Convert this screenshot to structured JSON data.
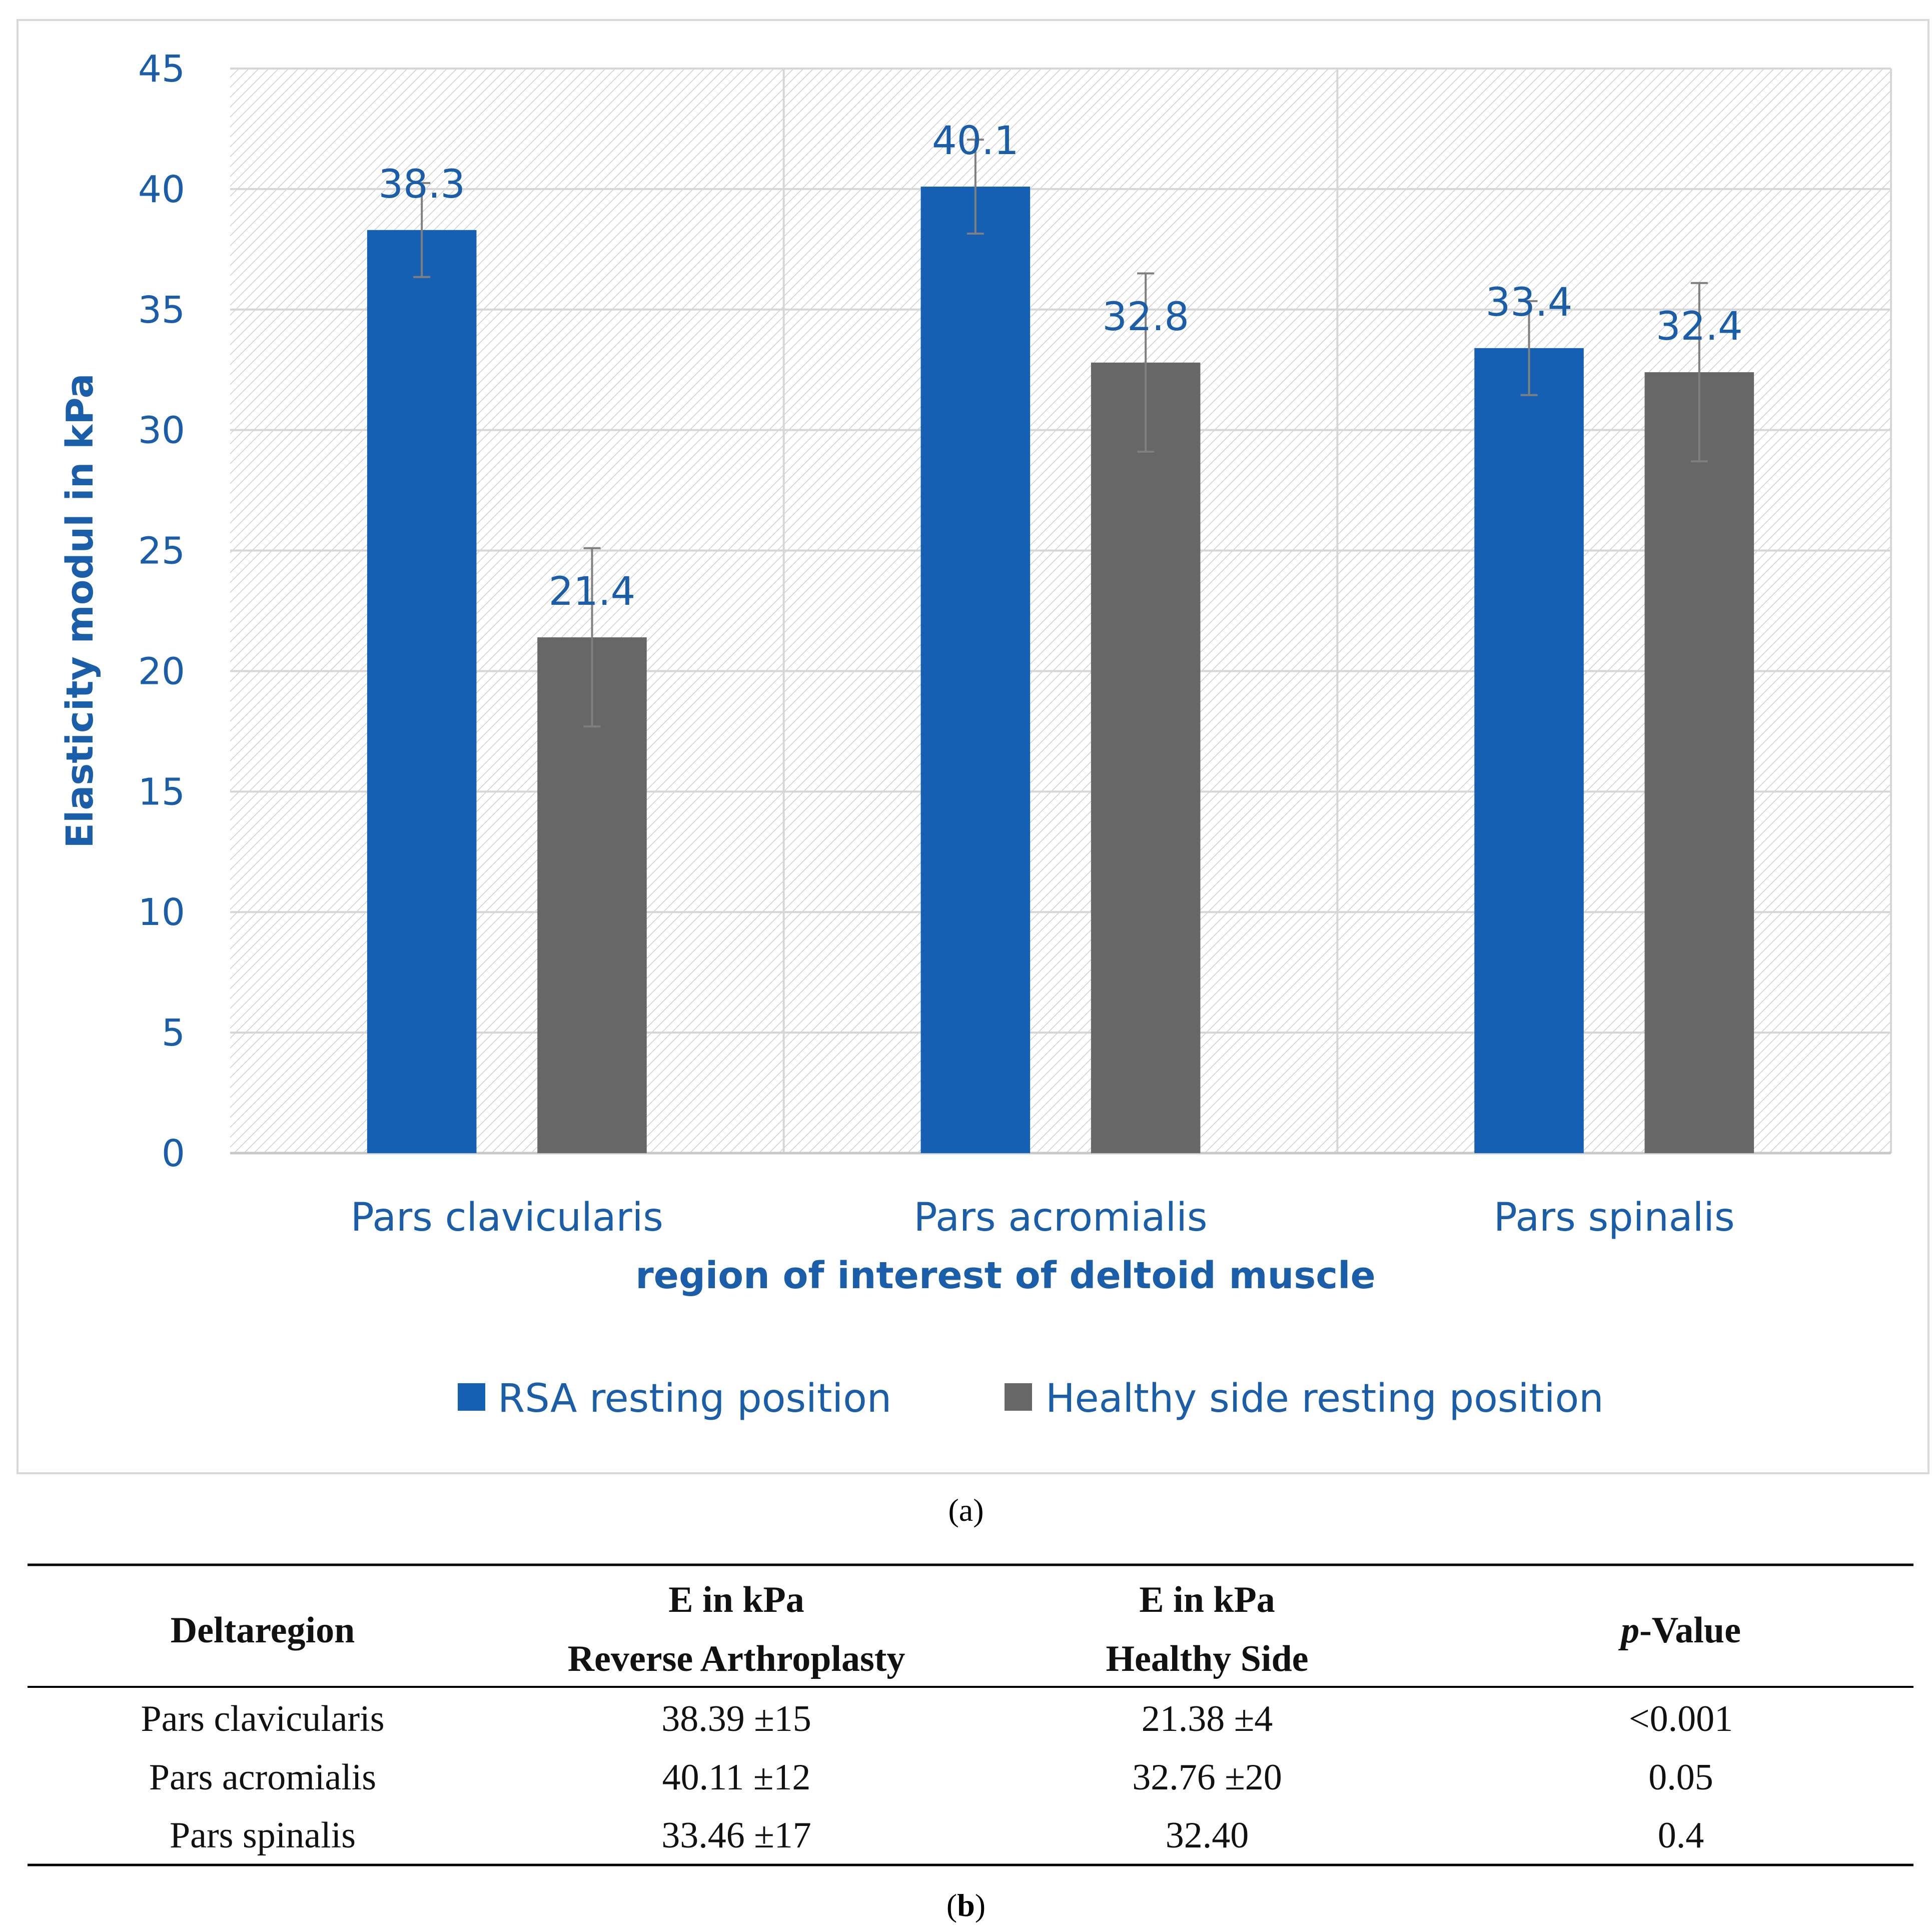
{
  "chart_data": {
    "type": "bar",
    "categories": [
      "Pars clavicularis",
      "Pars acromialis",
      "Pars spinalis"
    ],
    "series": [
      {
        "name": "RSA resting position",
        "values": [
          38.3,
          40.1,
          33.4
        ],
        "labels": [
          "38.3",
          "40.1",
          "33.4"
        ],
        "errors": [
          1.95,
          1.95,
          1.95
        ],
        "color": "#1560b3"
      },
      {
        "name": "Healthy side resting position",
        "values": [
          21.4,
          32.8,
          32.4
        ],
        "labels": [
          "21.4",
          "32.8",
          "32.4"
        ],
        "errors": [
          3.7,
          3.7,
          3.7
        ],
        "color": "#676767"
      }
    ],
    "yticks": [
      "0",
      "5",
      "10",
      "15",
      "20",
      "25",
      "30",
      "35",
      "40",
      "45"
    ],
    "ylim": [
      0,
      45
    ],
    "xlabel": "region of interest of deltoid muscle",
    "ylabel": "Elasticity modul in kPa",
    "legend_position": "bottom",
    "grid": true
  },
  "captions": {
    "a_open": "(",
    "a_letter": "a",
    "a_close": ")",
    "b_open": "(",
    "b_letter": "b",
    "b_close": ")"
  },
  "table": {
    "col1": "Deltaregion",
    "col2_line1": "E in kPa",
    "col2_line2": "Reverse Arthroplasty",
    "col3_line1": "E in kPa",
    "col3_line2": "Healthy Side",
    "col4_italic": "p",
    "col4_rest": "-Value",
    "rows": [
      [
        "Pars clavicularis",
        "38.39 ±15",
        "21.38 ±4",
        "<0.001"
      ],
      [
        "Pars acromialis",
        "40.11 ±12",
        "32.76 ±20",
        "0.05"
      ],
      [
        "Pars spinalis",
        "33.46 ±17",
        "32.40",
        "0.4"
      ]
    ]
  }
}
